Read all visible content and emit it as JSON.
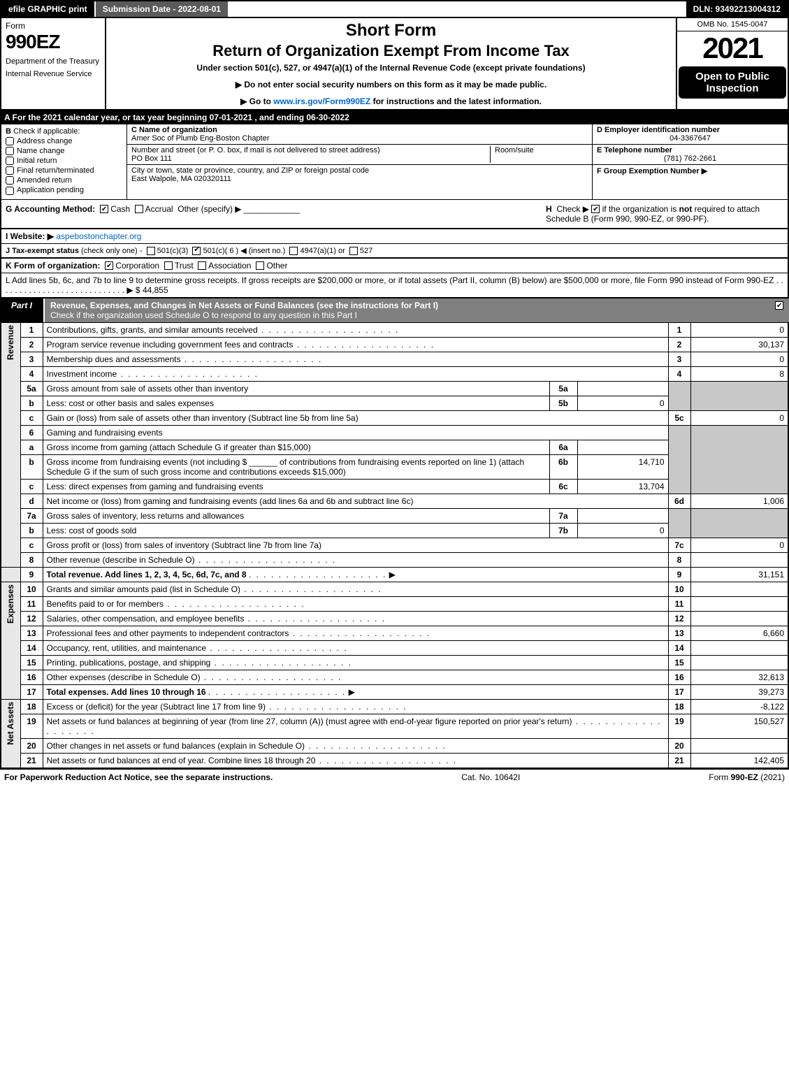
{
  "topbar": {
    "efile": "efile GRAPHIC print",
    "submission": "Submission Date - 2022-08-01",
    "dln": "DLN: 93492213004312"
  },
  "header": {
    "form_label": "Form",
    "form_number": "990EZ",
    "dept1": "Department of the Treasury",
    "dept2": "Internal Revenue Service",
    "short_form": "Short Form",
    "title": "Return of Organization Exempt From Income Tax",
    "under": "Under section 501(c), 527, or 4947(a)(1) of the Internal Revenue Code (except private foundations)",
    "note1": "▶ Do not enter social security numbers on this form as it may be made public.",
    "note2_pre": "▶ Go to ",
    "note2_link": "www.irs.gov/Form990EZ",
    "note2_post": " for instructions and the latest information.",
    "omb": "OMB No. 1545-0047",
    "year": "2021",
    "open": "Open to Public Inspection"
  },
  "section_a": "A  For the 2021 calendar year, or tax year beginning 07-01-2021 , and ending 06-30-2022",
  "section_b": {
    "label": "B",
    "check_if": "Check if applicable:",
    "items": [
      "Address change",
      "Name change",
      "Initial return",
      "Final return/terminated",
      "Amended return",
      "Application pending"
    ]
  },
  "section_c": {
    "name_label": "C Name of organization",
    "name": "Amer Soc of Plumb Eng-Boston Chapter",
    "street_label": "Number and street (or P. O. box, if mail is not delivered to street address)",
    "street": "PO Box 111",
    "room_label": "Room/suite",
    "city_label": "City or town, state or province, country, and ZIP or foreign postal code",
    "city": "East Walpole, MA  020320111"
  },
  "section_d": {
    "label": "D Employer identification number",
    "value": "04-3367647"
  },
  "section_e": {
    "label": "E Telephone number",
    "value": "(781) 762-2661"
  },
  "section_f": {
    "label": "F Group Exemption Number  ▶",
    "value": ""
  },
  "section_g": {
    "label": "G Accounting Method:",
    "cash": "Cash",
    "accrual": "Accrual",
    "other": "Other (specify) ▶"
  },
  "section_h": {
    "label": "H",
    "text1": "Check ▶",
    "text2": "if the organization is ",
    "not": "not",
    "text3": " required to attach Schedule B (Form 990, 990-EZ, or 990-PF)."
  },
  "section_i": {
    "label": "I Website: ▶",
    "link": "aspebostonchapter.org"
  },
  "section_j": {
    "label": "J Tax-exempt status",
    "sub": "(check only one) -",
    "o1": "501(c)(3)",
    "o2": "501(c)( 6 ) ◀ (insert no.)",
    "o3": "4947(a)(1) or",
    "o4": "527"
  },
  "section_k": {
    "label": "K Form of organization:",
    "o1": "Corporation",
    "o2": "Trust",
    "o3": "Association",
    "o4": "Other"
  },
  "section_l": {
    "text": "L Add lines 5b, 6c, and 7b to line 9 to determine gross receipts. If gross receipts are $200,000 or more, or if total assets (Part II, column (B) below) are $500,000 or more, file Form 990 instead of Form 990-EZ .  .  .  .  .  .  .  .  .  .  .  .  .  .  .  .  .  .  .  .  .  .  .  .  .  .  .  . ▶ $ ",
    "value": "44,855"
  },
  "part1": {
    "tab": "Part I",
    "title": "Revenue, Expenses, and Changes in Net Assets or Fund Balances (see the instructions for Part I)",
    "check": "Check if the organization used Schedule O to respond to any question in this Part I"
  },
  "side_labels": {
    "revenue": "Revenue",
    "expenses": "Expenses",
    "netassets": "Net Assets"
  },
  "lines": {
    "l1": {
      "n": "1",
      "t": "Contributions, gifts, grants, and similar amounts received",
      "rn": "1",
      "v": "0"
    },
    "l2": {
      "n": "2",
      "t": "Program service revenue including government fees and contracts",
      "rn": "2",
      "v": "30,137"
    },
    "l3": {
      "n": "3",
      "t": "Membership dues and assessments",
      "rn": "3",
      "v": "0"
    },
    "l4": {
      "n": "4",
      "t": "Investment income",
      "rn": "4",
      "v": "8"
    },
    "l5a": {
      "n": "5a",
      "t": "Gross amount from sale of assets other than inventory",
      "in": "5a",
      "iv": ""
    },
    "l5b": {
      "n": "b",
      "t": "Less: cost or other basis and sales expenses",
      "in": "5b",
      "iv": "0"
    },
    "l5c": {
      "n": "c",
      "t": "Gain or (loss) from sale of assets other than inventory (Subtract line 5b from line 5a)",
      "rn": "5c",
      "v": "0"
    },
    "l6": {
      "n": "6",
      "t": "Gaming and fundraising events"
    },
    "l6a": {
      "n": "a",
      "t": "Gross income from gaming (attach Schedule G if greater than $15,000)",
      "in": "6a",
      "iv": ""
    },
    "l6b": {
      "n": "b",
      "t1": "Gross income from fundraising events (not including $",
      "t2": "of contributions from fundraising events reported on line 1) (attach Schedule G if the sum of such gross income and contributions exceeds $15,000)",
      "in": "6b",
      "iv": "14,710"
    },
    "l6c": {
      "n": "c",
      "t": "Less: direct expenses from gaming and fundraising events",
      "in": "6c",
      "iv": "13,704"
    },
    "l6d": {
      "n": "d",
      "t": "Net income or (loss) from gaming and fundraising events (add lines 6a and 6b and subtract line 6c)",
      "rn": "6d",
      "v": "1,006"
    },
    "l7a": {
      "n": "7a",
      "t": "Gross sales of inventory, less returns and allowances",
      "in": "7a",
      "iv": ""
    },
    "l7b": {
      "n": "b",
      "t": "Less: cost of goods sold",
      "in": "7b",
      "iv": "0"
    },
    "l7c": {
      "n": "c",
      "t": "Gross profit or (loss) from sales of inventory (Subtract line 7b from line 7a)",
      "rn": "7c",
      "v": "0"
    },
    "l8": {
      "n": "8",
      "t": "Other revenue (describe in Schedule O)",
      "rn": "8",
      "v": ""
    },
    "l9": {
      "n": "9",
      "t": "Total revenue. Add lines 1, 2, 3, 4, 5c, 6d, 7c, and 8",
      "rn": "9",
      "v": "31,151"
    },
    "l10": {
      "n": "10",
      "t": "Grants and similar amounts paid (list in Schedule O)",
      "rn": "10",
      "v": ""
    },
    "l11": {
      "n": "11",
      "t": "Benefits paid to or for members",
      "rn": "11",
      "v": ""
    },
    "l12": {
      "n": "12",
      "t": "Salaries, other compensation, and employee benefits",
      "rn": "12",
      "v": ""
    },
    "l13": {
      "n": "13",
      "t": "Professional fees and other payments to independent contractors",
      "rn": "13",
      "v": "6,660"
    },
    "l14": {
      "n": "14",
      "t": "Occupancy, rent, utilities, and maintenance",
      "rn": "14",
      "v": ""
    },
    "l15": {
      "n": "15",
      "t": "Printing, publications, postage, and shipping",
      "rn": "15",
      "v": ""
    },
    "l16": {
      "n": "16",
      "t": "Other expenses (describe in Schedule O)",
      "rn": "16",
      "v": "32,613"
    },
    "l17": {
      "n": "17",
      "t": "Total expenses. Add lines 10 through 16",
      "rn": "17",
      "v": "39,273"
    },
    "l18": {
      "n": "18",
      "t": "Excess or (deficit) for the year (Subtract line 17 from line 9)",
      "rn": "18",
      "v": "-8,122"
    },
    "l19": {
      "n": "19",
      "t": "Net assets or fund balances at beginning of year (from line 27, column (A)) (must agree with end-of-year figure reported on prior year's return)",
      "rn": "19",
      "v": "150,527"
    },
    "l20": {
      "n": "20",
      "t": "Other changes in net assets or fund balances (explain in Schedule O)",
      "rn": "20",
      "v": ""
    },
    "l21": {
      "n": "21",
      "t": "Net assets or fund balances at end of year. Combine lines 18 through 20",
      "rn": "21",
      "v": "142,405"
    }
  },
  "footer": {
    "left": "For Paperwork Reduction Act Notice, see the separate instructions.",
    "mid": "Cat. No. 10642I",
    "right_pre": "Form ",
    "right_bold": "990-EZ",
    "right_post": " (2021)"
  }
}
